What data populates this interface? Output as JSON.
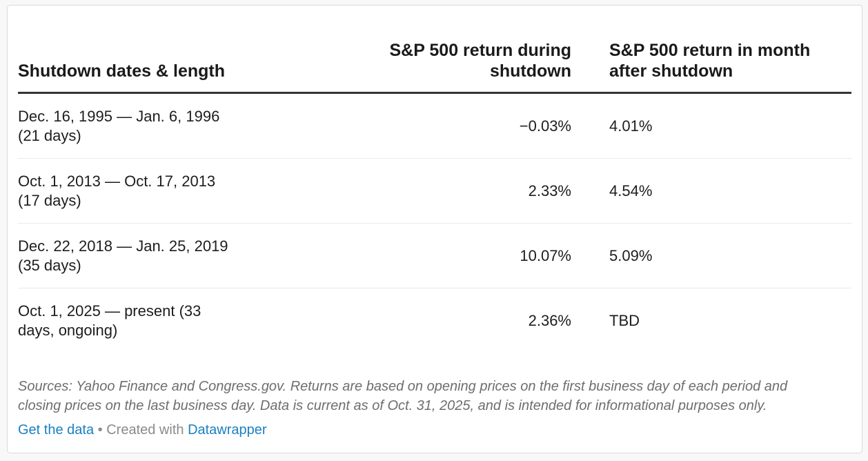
{
  "table": {
    "columns": {
      "dates": {
        "label": "Shutdown dates & length"
      },
      "during": {
        "label_line1": "S&P 500 return during",
        "label_line2": "shutdown"
      },
      "after": {
        "label_line1": "S&P 500 return in month",
        "label_line2": "after shutdown"
      }
    },
    "rows": [
      {
        "dates_line1": "Dec. 16, 1995 — Jan. 6, 1996",
        "dates_line2": "(21 days)",
        "during": "−0.03%",
        "after": "4.01%"
      },
      {
        "dates_line1": "Oct. 1, 2013 — Oct. 17, 2013",
        "dates_line2": "(17 days)",
        "during": "2.33%",
        "after": "4.54%"
      },
      {
        "dates_line1": "Dec. 22, 2018 — Jan. 25, 2019",
        "dates_line2": "(35 days)",
        "during": "10.07%",
        "after": "5.09%"
      },
      {
        "dates_line1": "Oct. 1, 2025 — present (33",
        "dates_line2": "days, ongoing)",
        "during": "2.36%",
        "after": "TBD"
      }
    ]
  },
  "footer": {
    "sources_line1": "Sources: Yahoo Finance and Congress.gov. Returns are based on opening prices on the first business day of each period and",
    "sources_line2": "closing prices on the last business day. Data is current as of Oct. 31, 2025, and is intended for informational purposes only.",
    "get_data_label": "Get the data",
    "separator": "•",
    "created_with": "Created with",
    "datawrapper_label": "Datawrapper"
  },
  "colors": {
    "link_blue": "#1a80c2",
    "header_rule": "#333333",
    "row_divider": "#eaeaea",
    "footer_gray": "#6e6e6e",
    "text": "#1d1d1d",
    "card_border": "#d9d9d9",
    "page_background": "#f8f8f8"
  },
  "chart_data": {
    "type": "table",
    "columns": [
      "Shutdown dates & length",
      "S&P 500 return during shutdown",
      "S&P 500 return in month after shutdown"
    ],
    "rows": [
      [
        "Dec. 16, 1995 — Jan. 6, 1996 (21 days)",
        "−0.03%",
        "4.01%"
      ],
      [
        "Oct. 1, 2013 — Oct. 17, 2013 (17 days)",
        "2.33%",
        "4.54%"
      ],
      [
        "Dec. 22, 2018 — Jan. 25, 2019 (35 days)",
        "10.07%",
        "5.09%"
      ],
      [
        "Oct. 1, 2025 — present (33 days, ongoing)",
        "2.36%",
        "TBD"
      ]
    ],
    "notes": "Returns during U.S. government shutdowns; grid off; no legend; source footnote shown below table"
  }
}
